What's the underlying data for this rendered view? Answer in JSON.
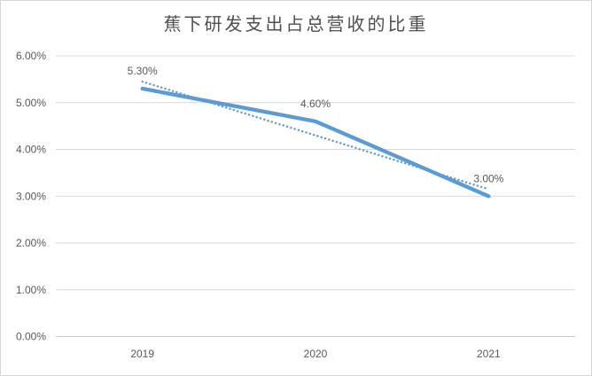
{
  "chart_data": {
    "type": "line",
    "title": "蕉下研发支出占总营收的比重",
    "categories": [
      "2019",
      "2020",
      "2021"
    ],
    "series": [
      {
        "values": [
          5.3,
          4.6,
          3.0
        ],
        "data_labels": [
          "5.30%",
          "4.60%",
          "3.00%"
        ],
        "color": "#5B9BD5",
        "line_width": 4.3
      }
    ],
    "trendline": {
      "type": "linear",
      "style": "dotted",
      "endpoints": [
        5.45,
        3.15
      ],
      "color": "#5B9BD5"
    },
    "y_axis": {
      "ticks": [
        "6.00%",
        "5.00%",
        "4.00%",
        "3.00%",
        "2.00%",
        "1.00%",
        "0.00%"
      ],
      "min": 0,
      "max": 6,
      "step": 1
    },
    "grid": true,
    "legend": "none",
    "colors": {
      "grid": "#D9D9D9",
      "axis_line": "#C6C6C6",
      "text": "#595959",
      "title": "#4F4F4F",
      "frame_border": "#D9D9D9",
      "background": "#FFFFFF"
    }
  }
}
